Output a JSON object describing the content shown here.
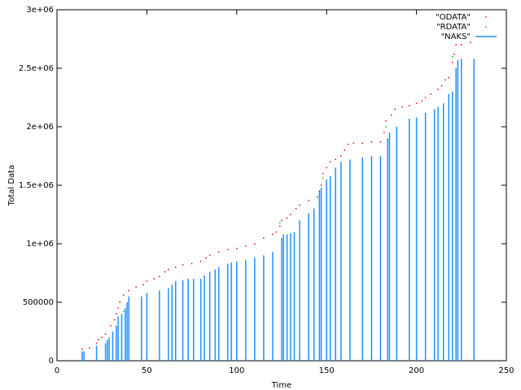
{
  "chart_data": {
    "type": "line",
    "xlabel": "Time",
    "ylabel": "Total Data",
    "xlim": [
      0,
      250
    ],
    "ylim": [
      0,
      3000000
    ],
    "xticks": [
      0,
      50,
      100,
      150,
      200,
      250
    ],
    "yticks": [
      0,
      500000,
      {
        "value": 1000000,
        "label": "1e+06"
      },
      {
        "value": 1500000,
        "label": "1.5e+06"
      },
      {
        "value": 2000000,
        "label": "2e+06"
      },
      {
        "value": 2500000,
        "label": "2.5e+06"
      },
      {
        "value": 3000000,
        "label": "3e+06"
      }
    ],
    "legend": "top-right",
    "series": [
      {
        "name": "\"ODATA\"",
        "color": "#ff0000",
        "style": "dots",
        "x": [
          14,
          18,
          22,
          23,
          25,
          27,
          30,
          32,
          33,
          34,
          35,
          37,
          40,
          44,
          48,
          50,
          54,
          57,
          60,
          62,
          66,
          70,
          75,
          80,
          83,
          85,
          90,
          95,
          100,
          105,
          110,
          115,
          120,
          122,
          124,
          125,
          128,
          130,
          133,
          135,
          140,
          145,
          146,
          147,
          148,
          150,
          152,
          155,
          158,
          160,
          162,
          165,
          170,
          175,
          180,
          182,
          183,
          186,
          188,
          192,
          196,
          200,
          203,
          205,
          208,
          212,
          214,
          216,
          218,
          220,
          221,
          222,
          225,
          230
        ],
        "values": [
          100000,
          110000,
          150000,
          180000,
          200000,
          230000,
          300000,
          350000,
          400000,
          450000,
          500000,
          560000,
          600000,
          630000,
          650000,
          680000,
          700000,
          720000,
          760000,
          780000,
          800000,
          820000,
          830000,
          850000,
          880000,
          900000,
          930000,
          950000,
          960000,
          980000,
          1000000,
          1050000,
          1080000,
          1100000,
          1150000,
          1200000,
          1220000,
          1250000,
          1300000,
          1330000,
          1370000,
          1400000,
          1450000,
          1500000,
          1600000,
          1650000,
          1700000,
          1720000,
          1750000,
          1800000,
          1850000,
          1860000,
          1860000,
          1870000,
          1870000,
          1950000,
          2050000,
          2100000,
          2150000,
          2170000,
          2180000,
          2200000,
          2220000,
          2250000,
          2280000,
          2320000,
          2350000,
          2400000,
          2420000,
          2550000,
          2620000,
          2700000,
          2700000,
          2720000
        ]
      },
      {
        "name": "\"RDATA\"",
        "color": "#00c000",
        "style": "dots",
        "x": [
          37,
          124,
          148,
          183,
          220
        ],
        "values": [
          420000,
          1180000,
          1560000,
          2000000,
          2600000
        ]
      },
      {
        "name": "\"NAKS\"",
        "color": "#1e90ff",
        "style": "impulses",
        "x": [
          14,
          15,
          22,
          27,
          28,
          29,
          31,
          33,
          34,
          36,
          38,
          39,
          40,
          47,
          50,
          57,
          62,
          64,
          66,
          70,
          73,
          76,
          80,
          82,
          85,
          88,
          90,
          95,
          97,
          100,
          105,
          110,
          115,
          120,
          125,
          126,
          128,
          130,
          132,
          135,
          140,
          143,
          146,
          147,
          150,
          152,
          155,
          158,
          163,
          170,
          175,
          180,
          184,
          185,
          189,
          196,
          200,
          205,
          210,
          212,
          215,
          218,
          220,
          222,
          223,
          225,
          232
        ],
        "values": [
          80000,
          80000,
          130000,
          150000,
          180000,
          200000,
          250000,
          300000,
          380000,
          400000,
          450000,
          500000,
          550000,
          550000,
          580000,
          600000,
          620000,
          650000,
          680000,
          690000,
          700000,
          700000,
          700000,
          730000,
          760000,
          780000,
          800000,
          830000,
          840000,
          850000,
          860000,
          880000,
          900000,
          930000,
          1050000,
          1080000,
          1080000,
          1090000,
          1100000,
          1200000,
          1260000,
          1300000,
          1450000,
          1480000,
          1550000,
          1580000,
          1650000,
          1700000,
          1720000,
          1740000,
          1750000,
          1750000,
          1900000,
          1950000,
          2000000,
          2070000,
          2080000,
          2120000,
          2150000,
          2170000,
          2200000,
          2280000,
          2300000,
          2500000,
          2570000,
          2580000,
          2580000
        ]
      }
    ]
  }
}
